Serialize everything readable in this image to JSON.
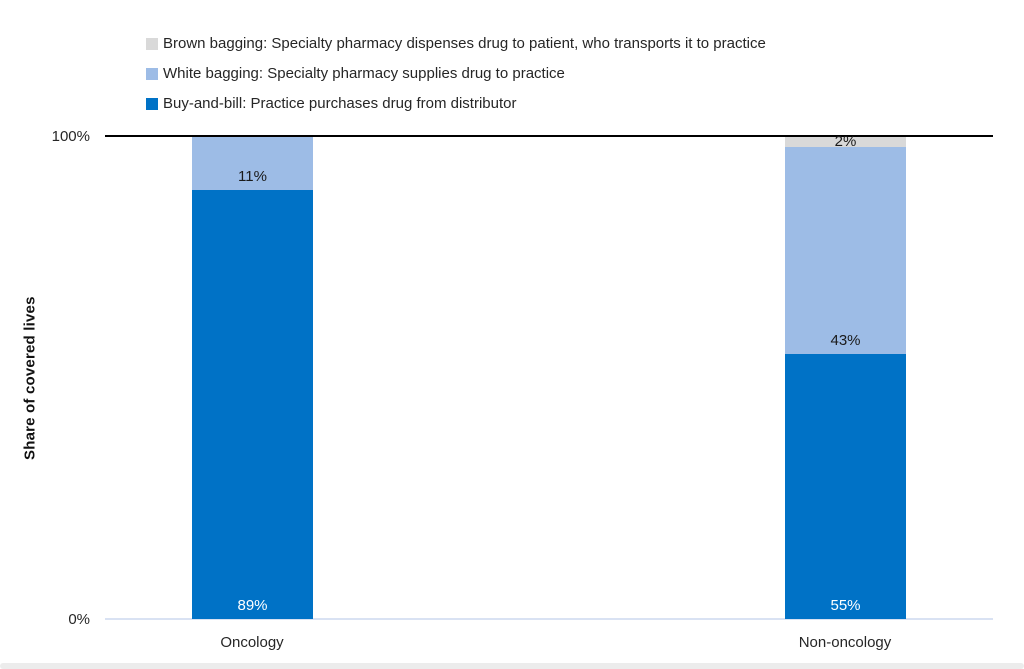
{
  "chart_data": {
    "type": "bar",
    "stacked": true,
    "title": "",
    "ylabel": "Share of covered lives",
    "categories": [
      "Oncology",
      "Non-oncology"
    ],
    "series": [
      {
        "name": "Buy-and-bill: Practice purchases drug from distributor",
        "values": [
          89,
          55
        ],
        "color": "#0072C6",
        "label_color": "#ffffff"
      },
      {
        "name": "White bagging: Specialty pharmacy supplies drug to practice",
        "values": [
          11,
          43
        ],
        "color": "#9DBCE6",
        "label_color": "#1a1a1a"
      },
      {
        "name": "Brown bagging: Specialty pharmacy dispenses drug to patient, who transports it to practice",
        "values": [
          0,
          2
        ],
        "color": "#D9D9D9",
        "label_color": "#1a1a1a"
      }
    ],
    "data_labels": {
      "oncology": [
        "89%",
        "11%"
      ],
      "non_oncology": [
        "55%",
        "43%",
        "2%"
      ]
    },
    "ylim": [
      0,
      100
    ],
    "yticks": [
      "0%",
      "100%"
    ],
    "legend_position": "top-left",
    "grid": false,
    "axis_line_color": "#000000",
    "baseline_color": "#d9e2f3"
  }
}
